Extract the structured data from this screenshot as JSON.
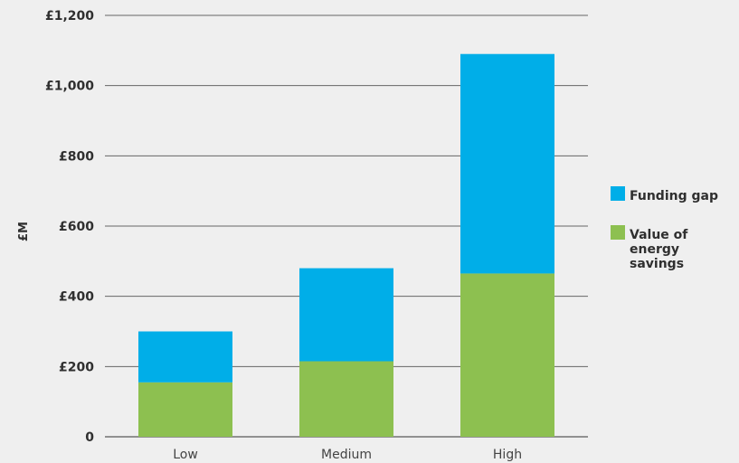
{
  "chart_data": {
    "type": "bar",
    "stacked": true,
    "title": "",
    "xlabel": "",
    "ylabel": "£M",
    "categories": [
      "Low",
      "Medium",
      "High"
    ],
    "series": [
      {
        "name": "Value of energy savings",
        "values": [
          155,
          215,
          465
        ],
        "color": "#8dc050"
      },
      {
        "name": "Funding gap",
        "values": [
          145,
          265,
          625
        ],
        "color": "#00aee8"
      }
    ],
    "ylim": [
      0,
      1200
    ],
    "yticks": [
      0,
      200,
      400,
      600,
      800,
      1000,
      1200
    ],
    "ytick_labels": [
      "0",
      "£200",
      "£400",
      "£600",
      "£800",
      "£1,000",
      "£1,200"
    ],
    "grid": true,
    "legend": {
      "placement": "right",
      "entries": [
        {
          "lines": [
            "Funding gap"
          ],
          "color": "#00aee8"
        },
        {
          "lines": [
            "Value of",
            "energy",
            "savings"
          ],
          "color": "#8dc050"
        }
      ]
    }
  }
}
